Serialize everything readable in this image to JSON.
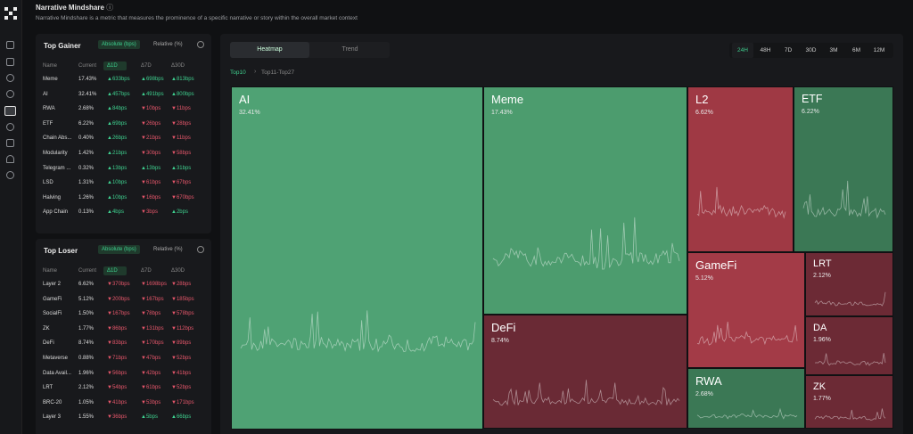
{
  "header": {
    "title": "Narrative Mindshare",
    "subtitle": "Narrative Mindshare is a metric that measures the prominence of a specific narrative or story within the overall market context"
  },
  "gainer": {
    "title": "Top Gainer",
    "toggles": [
      "Absolute (bps)",
      "Relative (%)"
    ],
    "columns": [
      "Name",
      "Current",
      "Δ1D",
      "Δ7D",
      "Δ30D"
    ],
    "rows": [
      [
        "Meme",
        "17.43%",
        "▲633bps",
        "▲698bps",
        "▲813bps"
      ],
      [
        "AI",
        "32.41%",
        "▲457bps",
        "▲491bps",
        "▲800bps"
      ],
      [
        "RWA",
        "2.68%",
        "▲84bps",
        "▼10bps",
        "▼11bps"
      ],
      [
        "ETF",
        "6.22%",
        "▲69bps",
        "▼26bps",
        "▼28bps"
      ],
      [
        "Chain Abs...",
        "0.40%",
        "▲26bps",
        "▼21bps",
        "▼11bps"
      ],
      [
        "Modularity",
        "1.42%",
        "▲21bps",
        "▼30bps",
        "▼58bps"
      ],
      [
        "Telegram ...",
        "0.32%",
        "▲13bps",
        "▲13bps",
        "▲31bps"
      ],
      [
        "LSD",
        "1.31%",
        "▲10bps",
        "▼61bps",
        "▼67bps"
      ],
      [
        "Halving",
        "1.26%",
        "▲10bps",
        "▼16bps",
        "▼670bps"
      ],
      [
        "App Chain",
        "0.13%",
        "▲4bps",
        "▼3bps",
        "▲2bps"
      ]
    ]
  },
  "loser": {
    "title": "Top Loser",
    "toggles": [
      "Absolute (bps)",
      "Relative (%)"
    ],
    "columns": [
      "Name",
      "Current",
      "Δ1D",
      "Δ7D",
      "Δ30D"
    ],
    "rows": [
      [
        "Layer 2",
        "6.62%",
        "▼370bps",
        "▼1698bps",
        "▼28bps"
      ],
      [
        "GameFi",
        "5.12%",
        "▼200bps",
        "▼167bps",
        "▼185bps"
      ],
      [
        "SocialFi",
        "1.50%",
        "▼167bps",
        "▼78bps",
        "▼578bps"
      ],
      [
        "ZK",
        "1.77%",
        "▼86bps",
        "▼131bps",
        "▼112bps"
      ],
      [
        "DeFi",
        "8.74%",
        "▼83bps",
        "▼170bps",
        "▼89bps"
      ],
      [
        "Metaverse",
        "0.88%",
        "▼71bps",
        "▼47bps",
        "▼52bps"
      ],
      [
        "Data Avail...",
        "1.96%",
        "▼56bps",
        "▼42bps",
        "▼41bps"
      ],
      [
        "LRT",
        "2.12%",
        "▼54bps",
        "▼61bps",
        "▼52bps"
      ],
      [
        "BRC-20",
        "1.05%",
        "▼41bps",
        "▼53bps",
        "▼171bps"
      ],
      [
        "Layer 3",
        "1.55%",
        "▼36bps",
        "▲5bps",
        "▲66bps"
      ]
    ]
  },
  "tabs": [
    "Heatmap",
    "Trend"
  ],
  "ranges": [
    "24H",
    "48H",
    "7D",
    "30D",
    "3M",
    "6M",
    "12M"
  ],
  "breadcrumb": [
    "Top10",
    "Top11-Top27"
  ],
  "tiles": [
    {
      "name": "AI",
      "share": "32.41%",
      "color": "#4fa274"
    },
    {
      "name": "Meme",
      "share": "17.43%",
      "color": "#4c9c6e"
    },
    {
      "name": "DeFi",
      "share": "8.74%",
      "color": "#6a2a35"
    },
    {
      "name": "L2",
      "share": "6.62%",
      "color": "#9f3944"
    },
    {
      "name": "ETF",
      "share": "6.22%",
      "color": "#3b7855"
    },
    {
      "name": "GameFi",
      "share": "5.12%",
      "color": "#a33b47"
    },
    {
      "name": "LRT",
      "share": "2.12%",
      "color": "#6c2a35"
    },
    {
      "name": "DA",
      "share": "1.96%",
      "color": "#6c2a35"
    },
    {
      "name": "RWA",
      "share": "2.68%",
      "color": "#3b7855"
    },
    {
      "name": "ZK",
      "share": "1.77%",
      "color": "#6c2a35"
    }
  ]
}
